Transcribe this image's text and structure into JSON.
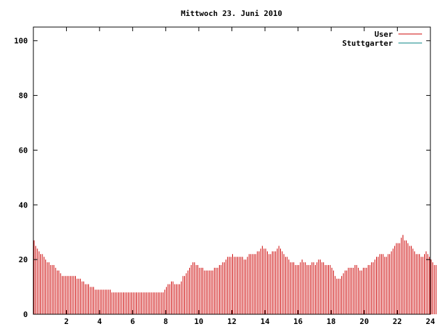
{
  "chart_data": {
    "type": "bar",
    "title": "Mittwoch 23. Juni 2010",
    "xlabel": "",
    "ylabel": "",
    "xlim": [
      0,
      24
    ],
    "ylim": [
      0,
      105
    ],
    "x_ticks": [
      2,
      4,
      6,
      8,
      10,
      12,
      14,
      16,
      18,
      20,
      22,
      24
    ],
    "y_ticks": [
      0,
      20,
      40,
      60,
      80,
      100
    ],
    "grid": false,
    "legend_position": "top-right",
    "series": [
      {
        "name": "User",
        "color": "#cc0000",
        "sample_interval_hours": 0.1,
        "values": [
          27,
          25,
          24,
          23,
          22,
          22,
          21,
          20,
          19,
          19,
          18,
          18,
          18,
          17,
          16,
          16,
          15,
          14,
          14,
          14,
          14,
          14,
          14,
          14,
          14,
          14,
          13,
          13,
          13,
          12,
          12,
          11,
          11,
          11,
          10,
          10,
          10,
          9,
          9,
          9,
          9,
          9,
          9,
          9,
          9,
          9,
          9,
          8,
          8,
          8,
          8,
          8,
          8,
          8,
          8,
          8,
          8,
          8,
          8,
          8,
          8,
          8,
          8,
          8,
          8,
          8,
          8,
          8,
          8,
          8,
          8,
          8,
          8,
          8,
          8,
          8,
          8,
          8,
          8,
          9,
          10,
          11,
          11,
          12,
          12,
          11,
          11,
          11,
          11,
          12,
          14,
          14,
          15,
          16,
          17,
          18,
          19,
          19,
          18,
          18,
          17,
          17,
          17,
          16,
          16,
          16,
          16,
          16,
          16,
          17,
          17,
          17,
          18,
          18,
          19,
          19,
          20,
          21,
          21,
          21,
          22,
          21,
          21,
          21,
          21,
          21,
          21,
          20,
          20,
          21,
          22,
          22,
          22,
          22,
          22,
          23,
          23,
          24,
          25,
          24,
          24,
          23,
          22,
          22,
          23,
          23,
          23,
          24,
          25,
          24,
          23,
          22,
          21,
          21,
          20,
          19,
          19,
          19,
          18,
          18,
          18,
          19,
          20,
          19,
          19,
          18,
          18,
          18,
          19,
          19,
          18,
          19,
          20,
          20,
          19,
          19,
          18,
          18,
          18,
          18,
          17,
          16,
          14,
          13,
          13,
          13,
          14,
          15,
          16,
          16,
          17,
          17,
          17,
          17,
          18,
          18,
          17,
          16,
          16,
          17,
          17,
          17,
          18,
          18,
          19,
          19,
          20,
          21,
          21,
          22,
          22,
          22,
          21,
          21,
          22,
          22,
          23,
          24,
          25,
          26,
          26,
          26,
          28,
          29,
          27,
          27,
          26,
          25,
          25,
          24,
          23,
          22,
          22,
          22,
          21,
          21,
          22,
          23,
          22,
          21,
          20,
          19,
          18,
          18
        ]
      },
      {
        "name": "Stuttgarter",
        "color": "#008080",
        "values": []
      }
    ]
  }
}
